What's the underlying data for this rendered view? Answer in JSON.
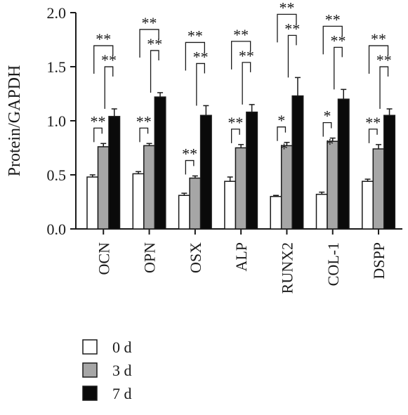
{
  "chart_data": {
    "type": "bar",
    "ylabel": "Protein/GAPDH",
    "ylim": [
      0,
      2.0
    ],
    "yticks": [
      "0.0",
      "0.5",
      "1.0",
      "1.5",
      "2.0"
    ],
    "categories": [
      "OCN",
      "OPN",
      "OSX",
      "ALP",
      "RUNX2",
      "COL-1",
      "DSPP"
    ],
    "series": [
      {
        "name": "0 d",
        "color": "#ffffff",
        "values": [
          0.48,
          0.51,
          0.31,
          0.44,
          0.3,
          0.32,
          0.44
        ],
        "errors": [
          0.02,
          0.02,
          0.02,
          0.04,
          0.01,
          0.02,
          0.02
        ]
      },
      {
        "name": "3 d",
        "color": "#a6a6a6",
        "values": [
          0.76,
          0.77,
          0.47,
          0.75,
          0.77,
          0.81,
          0.74
        ],
        "errors": [
          0.03,
          0.02,
          0.02,
          0.03,
          0.03,
          0.03,
          0.04
        ]
      },
      {
        "name": "7 d",
        "color": "#0a0a0a",
        "values": [
          1.04,
          1.22,
          1.05,
          1.08,
          1.23,
          1.2,
          1.05
        ],
        "errors": [
          0.07,
          0.04,
          0.09,
          0.07,
          0.17,
          0.09,
          0.06
        ]
      }
    ],
    "significance": [
      {
        "label_3v0": "**",
        "label_7v3": "**",
        "label_7v0": "**"
      },
      {
        "label_3v0": "**",
        "label_7v3": "**",
        "label_7v0": "**"
      },
      {
        "label_3v0": "**",
        "label_7v3": "**",
        "label_7v0": "**"
      },
      {
        "label_3v0": "**",
        "label_7v3": "**",
        "label_7v0": "**"
      },
      {
        "label_3v0": "*",
        "label_3v0_extra": "*",
        "label_7v3": "**",
        "label_7v0": "**"
      },
      {
        "label_3v0": "*",
        "label_3v0_extra": "*",
        "label_7v3": "**",
        "label_7v0": "**"
      },
      {
        "label_3v0": "**",
        "label_7v3": "**",
        "label_7v0": "**"
      }
    ],
    "legend": {
      "placement": "bottom-left"
    },
    "grid": false
  }
}
